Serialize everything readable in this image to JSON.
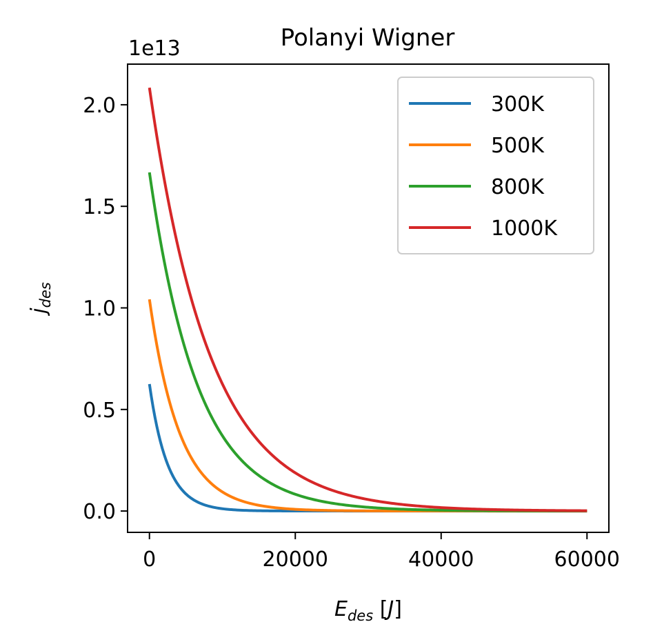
{
  "chart_data": {
    "type": "line",
    "title": "Polanyi Wigner",
    "xlabel": {
      "main": "E",
      "sub": "des",
      "unit_open": " [",
      "unit": "J",
      "unit_close": "]"
    },
    "ylabel": {
      "main": "j",
      "sub": "des"
    },
    "y_offset_text": "1e13",
    "xlim": [
      -3000,
      63000
    ],
    "ylim": [
      -0.105,
      2.2
    ],
    "x_ticks": [
      0,
      20000,
      40000,
      60000
    ],
    "x_tick_labels": [
      "0",
      "20000",
      "40000",
      "60000"
    ],
    "y_ticks": [
      0.0,
      0.5,
      1.0,
      1.5,
      2.0
    ],
    "y_tick_labels": [
      "0.0",
      "0.5",
      "1.0",
      "1.5",
      "2.0"
    ],
    "grid": false,
    "legend_position": "top-right",
    "x_start": 0,
    "x_end": 60000,
    "series": [
      {
        "name": "300K",
        "color": "#1f77b4",
        "y0": 0.625,
        "decay_per_J": 0.000401
      },
      {
        "name": "500K",
        "color": "#ff7f0e",
        "y0": 1.042,
        "decay_per_J": 0.0002405
      },
      {
        "name": "800K",
        "color": "#2ca02c",
        "y0": 1.667,
        "decay_per_J": 0.0001503
      },
      {
        "name": "1000K",
        "color": "#d62728",
        "y0": 2.084,
        "decay_per_J": 0.0001203
      }
    ]
  }
}
